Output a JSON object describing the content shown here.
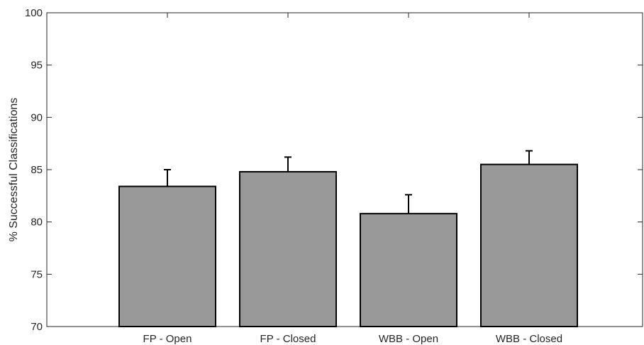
{
  "chart_data": {
    "type": "bar",
    "categories": [
      "FP - Open",
      "FP - Closed",
      "WBB - Open",
      "WBB - Closed"
    ],
    "values": [
      83.4,
      84.8,
      80.8,
      85.5
    ],
    "error_bars": [
      1.6,
      1.4,
      1.8,
      1.3
    ],
    "ylabel": "% Successful Classifications",
    "xlabel": "",
    "title": "",
    "ylim": [
      70,
      100
    ],
    "yticks": [
      70,
      75,
      80,
      85,
      90,
      95,
      100
    ],
    "grid": false,
    "bar_color": "#999999",
    "edge_color": "#000000"
  }
}
